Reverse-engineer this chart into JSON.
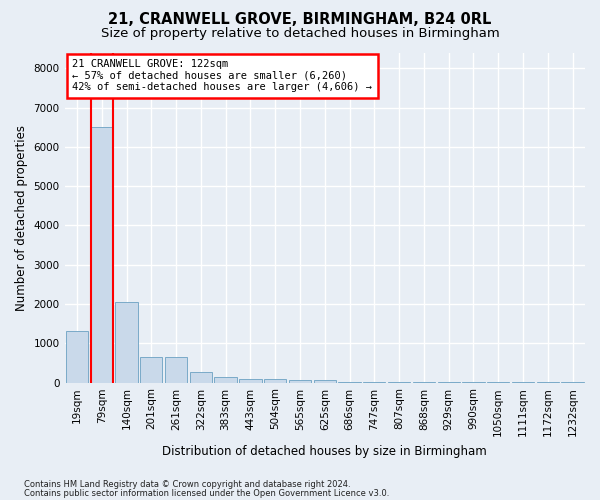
{
  "title": "21, CRANWELL GROVE, BIRMINGHAM, B24 0RL",
  "subtitle": "Size of property relative to detached houses in Birmingham",
  "xlabel": "Distribution of detached houses by size in Birmingham",
  "ylabel": "Number of detached properties",
  "bin_labels": [
    "19sqm",
    "79sqm",
    "140sqm",
    "201sqm",
    "261sqm",
    "322sqm",
    "383sqm",
    "443sqm",
    "504sqm",
    "565sqm",
    "625sqm",
    "686sqm",
    "747sqm",
    "807sqm",
    "868sqm",
    "929sqm",
    "990sqm",
    "1050sqm",
    "1111sqm",
    "1172sqm",
    "1232sqm"
  ],
  "bar_values": [
    1300,
    6500,
    2050,
    650,
    640,
    260,
    130,
    100,
    80,
    70,
    60,
    10,
    5,
    5,
    5,
    5,
    5,
    5,
    5,
    5,
    5
  ],
  "highlight_bin": 1,
  "bar_color": "#c9d9ea",
  "bar_edge_color": "#7aaac8",
  "ylim": [
    0,
    8400
  ],
  "yticks": [
    0,
    1000,
    2000,
    3000,
    4000,
    5000,
    6000,
    7000,
    8000
  ],
  "annotation_title": "21 CRANWELL GROVE: 122sqm",
  "annotation_line1": "← 57% of detached houses are smaller (6,260)",
  "annotation_line2": "42% of semi-detached houses are larger (4,606) →",
  "footer1": "Contains HM Land Registry data © Crown copyright and database right 2024.",
  "footer2": "Contains public sector information licensed under the Open Government Licence v3.0.",
  "background_color": "#e8eef5",
  "plot_bg_color": "#e8eef5",
  "grid_color": "#ffffff",
  "title_fontsize": 10.5,
  "subtitle_fontsize": 9.5,
  "axis_label_fontsize": 8.5,
  "tick_fontsize": 7.5,
  "annotation_fontsize": 7.5,
  "footer_fontsize": 6.0
}
